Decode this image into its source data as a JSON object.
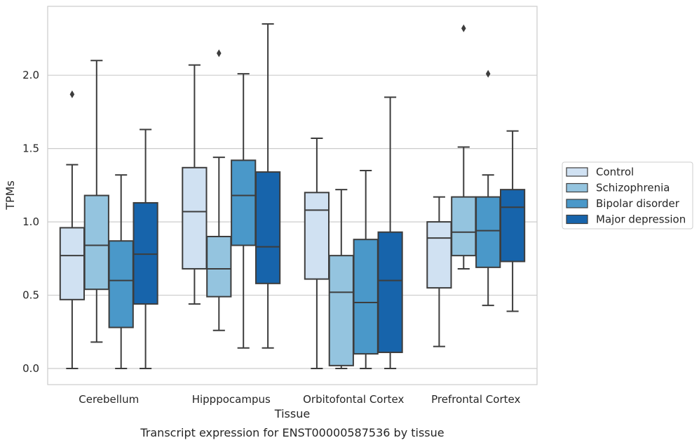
{
  "chart_data": {
    "type": "box",
    "title": "",
    "caption": "Transcript expression for ENST00000587536 by tissue",
    "xlabel": "Tissue",
    "ylabel": "TPMs",
    "ylim": [
      -0.11,
      2.47
    ],
    "yticks": [
      0.0,
      0.5,
      1.0,
      1.5,
      2.0
    ],
    "ytick_labels": [
      "0.0",
      "0.5",
      "1.0",
      "1.5",
      "2.0"
    ],
    "grid": "horizontal",
    "legend_position": "right",
    "categories": [
      "Cerebellum",
      "Hipppocampus",
      "Orbitofontal Cortex",
      "Prefrontal Cortex"
    ],
    "series": [
      {
        "name": "Control",
        "color": "#d0e1f2",
        "boxes": [
          {
            "whisker_low": 0.0,
            "q1": 0.47,
            "median": 0.77,
            "q3": 0.96,
            "whisker_high": 1.39,
            "outliers": [
              1.87
            ]
          },
          {
            "whisker_low": 0.44,
            "q1": 0.68,
            "median": 1.07,
            "q3": 1.37,
            "whisker_high": 2.07,
            "outliers": []
          },
          {
            "whisker_low": 0.0,
            "q1": 0.61,
            "median": 1.08,
            "q3": 1.2,
            "whisker_high": 1.57,
            "outliers": []
          },
          {
            "whisker_low": 0.15,
            "q1": 0.55,
            "median": 0.89,
            "q3": 1.0,
            "whisker_high": 1.17,
            "outliers": []
          }
        ]
      },
      {
        "name": "Schizophrenia",
        "color": "#94c4df",
        "boxes": [
          {
            "whisker_low": 0.18,
            "q1": 0.54,
            "median": 0.84,
            "q3": 1.18,
            "whisker_high": 2.1,
            "outliers": []
          },
          {
            "whisker_low": 0.26,
            "q1": 0.49,
            "median": 0.68,
            "q3": 0.9,
            "whisker_high": 1.44,
            "outliers": [
              2.15
            ]
          },
          {
            "whisker_low": 0.0,
            "q1": 0.02,
            "median": 0.52,
            "q3": 0.77,
            "whisker_high": 1.22,
            "outliers": []
          },
          {
            "whisker_low": 0.68,
            "q1": 0.77,
            "median": 0.93,
            "q3": 1.17,
            "whisker_high": 1.51,
            "outliers": [
              2.32
            ]
          }
        ]
      },
      {
        "name": "Bipolar disorder",
        "color": "#4a98c9",
        "boxes": [
          {
            "whisker_low": 0.0,
            "q1": 0.28,
            "median": 0.6,
            "q3": 0.87,
            "whisker_high": 1.32,
            "outliers": []
          },
          {
            "whisker_low": 0.14,
            "q1": 0.84,
            "median": 1.18,
            "q3": 1.42,
            "whisker_high": 2.01,
            "outliers": []
          },
          {
            "whisker_low": 0.0,
            "q1": 0.1,
            "median": 0.45,
            "q3": 0.88,
            "whisker_high": 1.35,
            "outliers": []
          },
          {
            "whisker_low": 0.43,
            "q1": 0.69,
            "median": 0.94,
            "q3": 1.17,
            "whisker_high": 1.32,
            "outliers": [
              2.01
            ]
          }
        ]
      },
      {
        "name": "Major depression",
        "color": "#1764ab",
        "boxes": [
          {
            "whisker_low": 0.0,
            "q1": 0.44,
            "median": 0.78,
            "q3": 1.13,
            "whisker_high": 1.63,
            "outliers": []
          },
          {
            "whisker_low": 0.14,
            "q1": 0.58,
            "median": 0.83,
            "q3": 1.34,
            "whisker_high": 2.35,
            "outliers": []
          },
          {
            "whisker_low": 0.0,
            "q1": 0.11,
            "median": 0.6,
            "q3": 0.93,
            "whisker_high": 1.85,
            "outliers": []
          },
          {
            "whisker_low": 0.39,
            "q1": 0.73,
            "median": 1.1,
            "q3": 1.22,
            "whisker_high": 1.62,
            "outliers": []
          }
        ]
      }
    ]
  }
}
